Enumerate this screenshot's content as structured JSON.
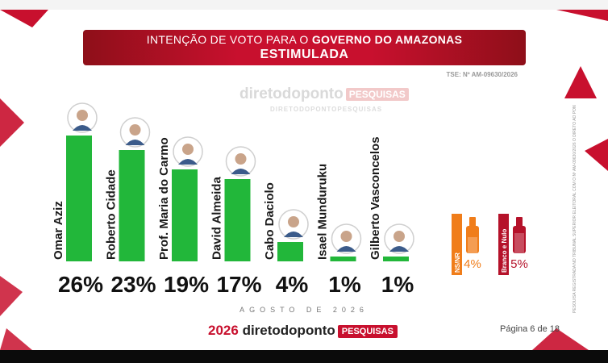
{
  "banner": {
    "line1_prefix": "INTENÇÃO DE VOTO PARA O ",
    "line1_bold": "GOVERNO DO AMAZONAS",
    "line2": "ESTIMULADA"
  },
  "tse": "TSE: Nº AM-09630/2026",
  "watermark": {
    "brand": "diretodoponto",
    "pesquisas": "PESQUISAS",
    "sub": "DIRETODOPONTOPESQUISAS"
  },
  "chart_data": {
    "type": "bar",
    "title": "INTENÇÃO DE VOTO PARA O GOVERNO DO AMAZONAS — ESTIMULADA",
    "categories": [
      "Omar Aziz",
      "Roberto Cidade",
      "Prof. Maria do Carmo",
      "David Almeida",
      "Cabo Daciolo",
      "Isael Munduruku",
      "Gilberto Vasconcelos"
    ],
    "values": [
      26,
      23,
      19,
      17,
      4,
      1,
      1
    ],
    "value_labels": [
      "26%",
      "23%",
      "19%",
      "17%",
      "4%",
      "1%",
      "1%"
    ],
    "unit": "%",
    "bar_color": "#22b73a",
    "ylim": [
      0,
      27
    ],
    "extra": [
      {
        "label": "NS/NR",
        "value": 4,
        "value_label": "4%",
        "color": "#f07d1a"
      },
      {
        "label": "Branco e Nulo",
        "value": 5,
        "value_label": "5%",
        "color": "#b5122a"
      }
    ]
  },
  "footer": {
    "month": "AGOSTO DE 2026",
    "year": "2026",
    "brand": "diretodoponto",
    "pesquisas": "PESQUISAS",
    "page": "Página 6 de 18"
  },
  "legal_text": "PESQUISA REGISTRADA NO TRIBUNAL SUPERIOR ELEITORAL COM O Nº AM-09630/2026 O DIRETO AO PONTO PESQUISAS FOI A CONTRATANTE E EXECUTORA DO ESTUDO",
  "colors": {
    "accent": "#c8102e",
    "bar": "#22b73a",
    "nsnr": "#f07d1a",
    "branco": "#b5122a"
  }
}
